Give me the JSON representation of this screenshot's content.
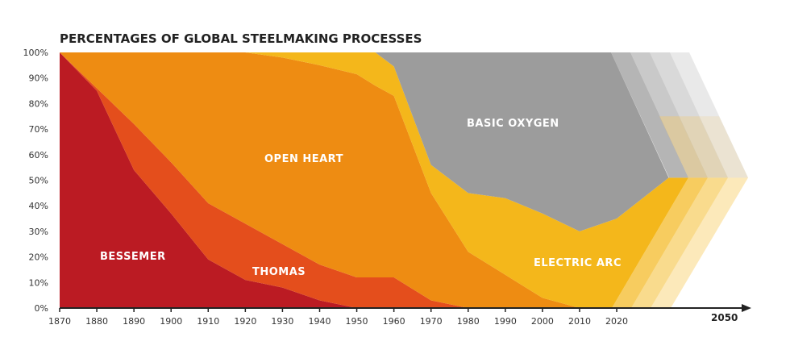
{
  "chart_data": {
    "type": "area",
    "stacked": true,
    "title": "PERCENTAGES OF GLOBAL STEELMAKING PROCESSES",
    "xlabel": "",
    "ylabel": "",
    "x": [
      1870,
      1880,
      1890,
      1900,
      1910,
      1920,
      1930,
      1940,
      1950,
      1955,
      1960,
      1970,
      1980,
      1990,
      2000,
      2010,
      2020
    ],
    "series": [
      {
        "name": "BESSEMER",
        "color": "#bb1b23",
        "values": [
          100,
          85,
          54,
          37,
          19,
          11,
          8,
          3,
          0,
          0,
          0,
          0,
          0,
          0,
          0,
          0,
          0
        ]
      },
      {
        "name": "THOMAS",
        "color": "#e44e1c",
        "values": [
          0,
          1,
          18,
          20,
          22,
          22,
          17,
          14,
          12,
          12,
          12,
          3,
          0,
          0,
          0,
          0,
          0
        ]
      },
      {
        "name": "OPEN HEART",
        "color": "#ee8c12",
        "values": [
          0,
          14,
          28,
          43,
          59,
          67,
          73,
          78,
          79.5,
          75,
          71,
          42,
          22,
          13,
          4,
          0,
          0
        ]
      },
      {
        "name": "ELECTRIC ARC",
        "color": "#f4b71b",
        "values": [
          0,
          0,
          0,
          0,
          0,
          0,
          2,
          5,
          8.5,
          13,
          11.5,
          11,
          23,
          30,
          33,
          30,
          35
        ]
      },
      {
        "name": "BASIC OXYGEN",
        "color": "#9c9c9c",
        "values": [
          0,
          0,
          0,
          0,
          0,
          0,
          0,
          0,
          0,
          0,
          5.5,
          44,
          55,
          57,
          63,
          70,
          65
        ]
      }
    ],
    "projection": {
      "end_label": "2050",
      "style": "fading chevrons"
    },
    "xlim": [
      1870,
      2050
    ],
    "ylim": [
      0,
      100
    ],
    "x_ticks": [
      "1870",
      "1880",
      "1890",
      "1900",
      "1910",
      "1920",
      "1930",
      "1940",
      "1950",
      "1960",
      "1970",
      "1980",
      "1990",
      "2000",
      "2010",
      "2020"
    ],
    "y_ticks": [
      "0%",
      "10%",
      "20%",
      "30%",
      "40%",
      "50%",
      "60%",
      "70%",
      "80%",
      "90%",
      "100%"
    ],
    "grid": false,
    "legend": "inline labels"
  }
}
